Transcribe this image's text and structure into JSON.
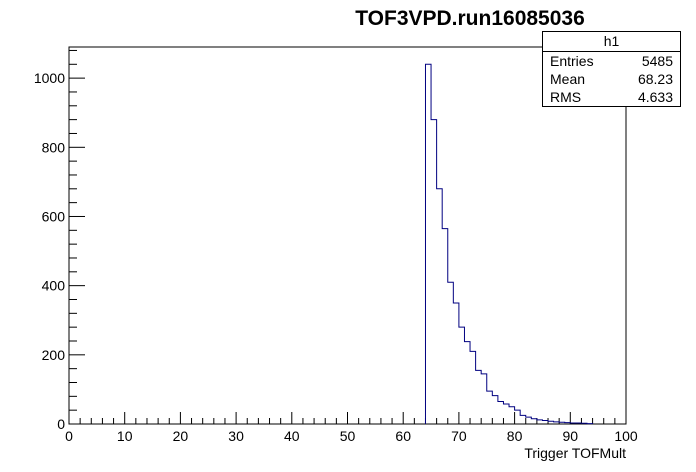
{
  "title": "TOF3VPD.run16085036",
  "stats": {
    "name": "h1",
    "rows": [
      {
        "label": "Entries",
        "value": "5485"
      },
      {
        "label": "Mean",
        "value": "68.23"
      },
      {
        "label": "RMS",
        "value": "4.633"
      }
    ]
  },
  "colors": {
    "line": "#000080",
    "axis": "#000000"
  },
  "chart_data": {
    "type": "bar",
    "title": "TOF3VPD.run16085036",
    "xlabel": "Trigger TOFMult",
    "ylabel": "",
    "xlim": [
      0,
      100
    ],
    "ylim": [
      0,
      1090
    ],
    "xticks": [
      0,
      10,
      20,
      30,
      40,
      50,
      60,
      70,
      80,
      90,
      100
    ],
    "xtick_labels": [
      "0",
      "10",
      "20",
      "30",
      "40",
      "50",
      "60",
      "70",
      "80",
      "90",
      "100"
    ],
    "yticks": [
      0,
      200,
      400,
      600,
      800,
      1000
    ],
    "ytick_labels": [
      "0",
      "200",
      "400",
      "600",
      "800",
      "1000"
    ],
    "bin_width": 1,
    "bin_starts": [
      64,
      65,
      66,
      67,
      68,
      69,
      70,
      71,
      72,
      73,
      74,
      75,
      76,
      77,
      78,
      79,
      80,
      81,
      82,
      83,
      84,
      85,
      86,
      87,
      88,
      89,
      90,
      91,
      92,
      93
    ],
    "values": [
      1040,
      880,
      680,
      565,
      410,
      350,
      280,
      238,
      210,
      155,
      145,
      95,
      82,
      65,
      58,
      50,
      40,
      25,
      20,
      15,
      12,
      10,
      8,
      6,
      5,
      4,
      3,
      3,
      2,
      1
    ],
    "grid": false,
    "legend": "top-right"
  }
}
